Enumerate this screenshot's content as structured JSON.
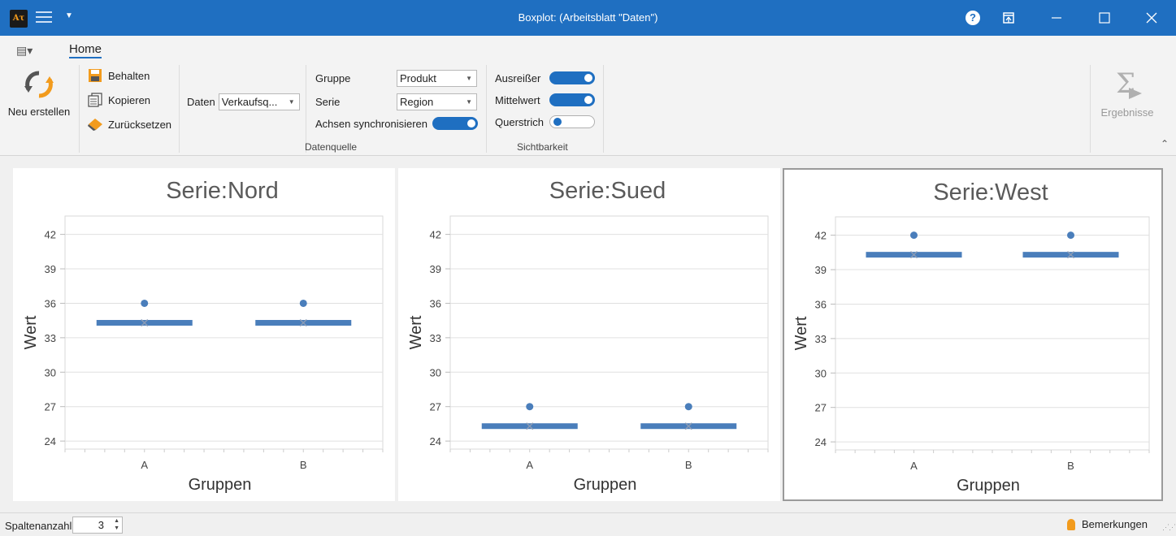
{
  "window": {
    "title": "Boxplot:  (Arbeitsblatt \"Daten\")",
    "logo_text": "Aτ"
  },
  "ribbon": {
    "tab_home": "Home",
    "neu_erstellen": "Neu erstellen",
    "behalten": "Behalten",
    "kopieren": "Kopieren",
    "zuruecksetzen": "Zurücksetzen",
    "daten_label": "Daten",
    "daten_value": "Verkaufsq...",
    "gruppe_label": "Gruppe",
    "gruppe_value": "Produkt",
    "serie_label": "Serie",
    "serie_value": "Region",
    "achsen_label": "Achsen synchronisieren",
    "achsen_on": true,
    "datenquelle_label": "Datenquelle",
    "ausreisser_label": "Ausreißer",
    "ausreisser_on": true,
    "mittelwert_label": "Mittelwert",
    "mittelwert_on": true,
    "querstrich_label": "Querstrich",
    "querstrich_on": false,
    "sichtbarkeit_label": "Sichtbarkeit",
    "ergebnisse": "Ergebnisse"
  },
  "chart_data": [
    {
      "type": "boxplot",
      "title": "Serie:Nord",
      "xlabel": "Gruppen",
      "ylabel": "Wert",
      "categories": [
        "A",
        "B"
      ],
      "yticks": [
        24,
        27,
        30,
        33,
        36,
        39,
        42
      ],
      "ylim": [
        23.3,
        43.6
      ],
      "median": [
        34.3,
        34.3
      ],
      "mean": [
        34.3,
        34.3
      ],
      "outliers": [
        36,
        36
      ]
    },
    {
      "type": "boxplot",
      "title": "Serie:Sued",
      "xlabel": "Gruppen",
      "ylabel": "Wert",
      "categories": [
        "A",
        "B"
      ],
      "yticks": [
        24,
        27,
        30,
        33,
        36,
        39,
        42
      ],
      "ylim": [
        23.3,
        43.6
      ],
      "median": [
        25.3,
        25.3
      ],
      "mean": [
        25.3,
        25.3
      ],
      "outliers": [
        27,
        27
      ]
    },
    {
      "type": "boxplot",
      "title": "Serie:West",
      "xlabel": "Gruppen",
      "ylabel": "Wert",
      "categories": [
        "A",
        "B"
      ],
      "yticks": [
        24,
        27,
        30,
        33,
        36,
        39,
        42
      ],
      "ylim": [
        23.3,
        43.6
      ],
      "median": [
        40.3,
        40.3
      ],
      "mean": [
        40.3,
        40.3
      ],
      "outliers": [
        42,
        42
      ]
    }
  ],
  "colors": {
    "accent": "#1f6fc1",
    "series": "#4a7ebb",
    "mean_marker": "#8a9bb5",
    "title_text": "#5a5a5a"
  },
  "statusbar": {
    "spalten_label": "Spaltenanzahl",
    "spalten_value": "3",
    "bemerkungen": "Bemerkungen"
  }
}
